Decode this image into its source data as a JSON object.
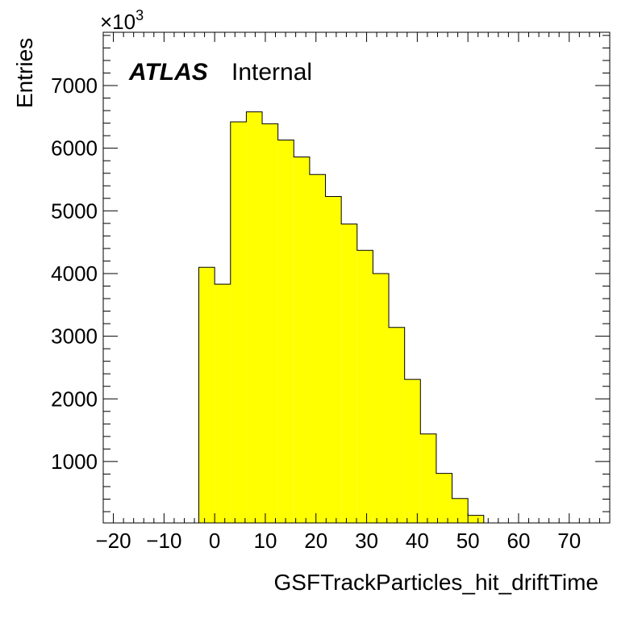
{
  "chart_data": {
    "type": "histogram",
    "xlabel": "GSFTrackParticles_hit_driftTime",
    "ylabel": "Entries",
    "y_multiplier": "×10",
    "y_multiplier_exp": "3",
    "xlim": [
      -22,
      78
    ],
    "ylim": [
      20,
      7850
    ],
    "x_ticks": [
      -20,
      -10,
      0,
      10,
      20,
      30,
      40,
      50,
      60,
      70
    ],
    "y_ticks": [
      1000,
      2000,
      3000,
      4000,
      5000,
      6000,
      7000
    ],
    "bin_edges": [
      -3.125,
      0.0,
      3.125,
      6.25,
      9.375,
      12.5,
      15.625,
      18.75,
      21.875,
      25.0,
      28.125,
      31.25,
      34.375,
      37.5,
      40.625,
      43.75,
      46.875,
      50.0,
      53.125
    ],
    "values": [
      4100,
      3830,
      6420,
      6580,
      6390,
      6130,
      5860,
      5580,
      5230,
      4790,
      4370,
      4000,
      3140,
      2310,
      1440,
      810,
      410,
      140
    ],
    "fill_color": "#ffff00",
    "line_color": "#000000",
    "grid": false,
    "label_atlas": "ATLAS",
    "label_status": "Internal"
  }
}
